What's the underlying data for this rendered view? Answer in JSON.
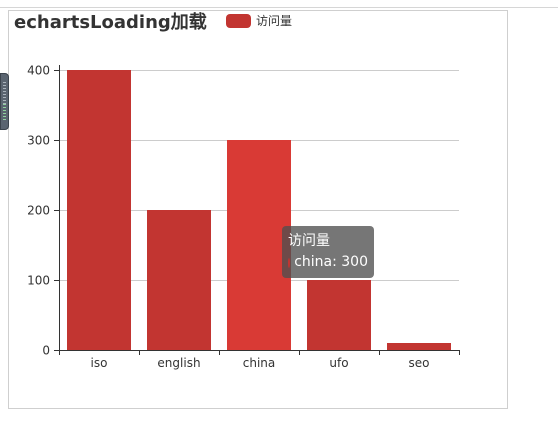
{
  "chart_data": {
    "type": "bar",
    "title": "echartsLoading加载",
    "categories": [
      "iso",
      "english",
      "china",
      "ufo",
      "seo"
    ],
    "series": [
      {
        "name": "访问量",
        "values": [
          400,
          200,
          300,
          100,
          10
        ]
      }
    ],
    "ylim": [
      0,
      400
    ],
    "yticks": [
      0,
      100,
      200,
      300,
      400
    ],
    "grid": true,
    "legend_position": "top",
    "highlighted_category": "china"
  },
  "tooltip": {
    "title": "访问量",
    "text": "china: 300"
  },
  "colors": {
    "bar": "#c23531",
    "bar_highlight": "#d93a35",
    "grid": "#cccccc",
    "axis": "#333333",
    "label": "#333333"
  }
}
